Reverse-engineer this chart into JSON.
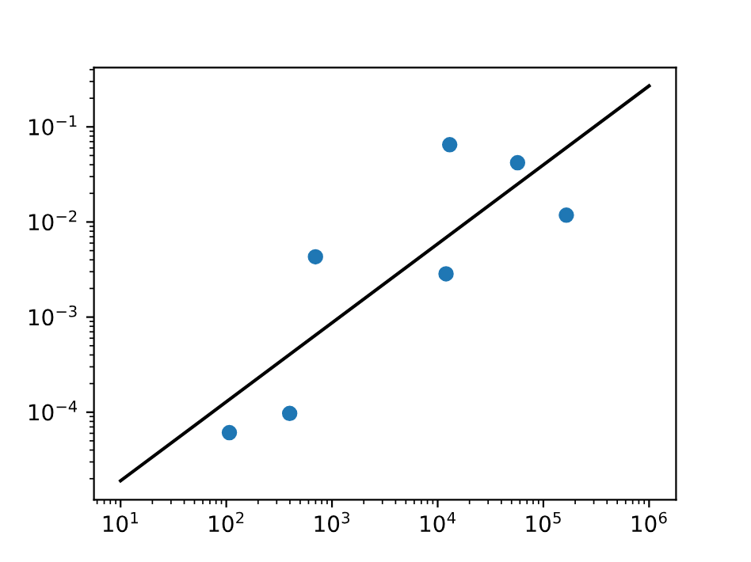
{
  "chart_data": {
    "type": "scatter",
    "log": "xy",
    "xlim": [
      5.6,
      1800000.0
    ],
    "ylim": [
      1.2e-05,
      0.42
    ],
    "xticks": [
      {
        "value": 10,
        "label": "10$^{1}$"
      },
      {
        "value": 100,
        "label": "10$^{2}$"
      },
      {
        "value": 1000,
        "label": "10$^{3}$"
      },
      {
        "value": 10000,
        "label": "10$^{4}$"
      },
      {
        "value": 100000,
        "label": "10$^{5}$"
      },
      {
        "value": 1000000,
        "label": "10$^{6}$"
      }
    ],
    "yticks": [
      {
        "value": 0.0001,
        "label": "10$^{−4}$"
      },
      {
        "value": 0.001,
        "label": "10$^{−3}$"
      },
      {
        "value": 0.01,
        "label": "10$^{−2}$"
      },
      {
        "value": 0.1,
        "label": "10$^{−1}$"
      }
    ],
    "grid": false,
    "legend": false,
    "series": [
      {
        "color": "#1f77b4",
        "marker": "circle",
        "x": [
          107,
          398,
          698,
          12000,
          13000,
          57000,
          165000
        ],
        "values": [
          6.1e-05,
          9.7e-05,
          0.0043,
          0.00285,
          0.065,
          0.042,
          0.0118
        ]
      },
      {
        "type": "line",
        "color": "#000000",
        "marker": "none",
        "line_style": "solid",
        "x": [
          10,
          1000000
        ],
        "values": [
          1.9e-05,
          0.27
        ]
      }
    ]
  }
}
